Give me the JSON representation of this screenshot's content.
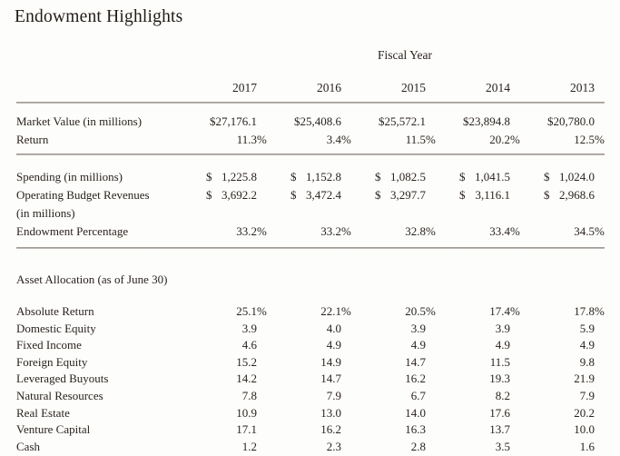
{
  "page": {
    "title": "Endowment Highlights"
  },
  "colors": {
    "text": "#2a231d",
    "rule": "#a8a29c",
    "background": "#fdfdfc"
  },
  "table": {
    "group_header": "Fiscal Year",
    "years": [
      "2017",
      "2016",
      "2015",
      "2014",
      "2013"
    ],
    "sections": [
      {
        "name": "market-value",
        "rows": [
          {
            "label": "Market Value (in millions)",
            "type": "plain",
            "values": [
              "$27,176.1",
              "$25,408.6",
              "$25,572.1",
              "$23,894.8",
              "$20,780.0"
            ]
          },
          {
            "label": "Return",
            "type": "percent",
            "values": [
              "11.3%",
              "3.4%",
              "11.5%",
              "20.2%",
              "12.5%"
            ]
          }
        ]
      },
      {
        "name": "spending",
        "rows": [
          {
            "label": "Spending (in millions)",
            "type": "money",
            "values": [
              "$ 1,225.8",
              "$ 1,152.8",
              "$ 1,082.5",
              "$ 1,041.5",
              "$ 1,024.0"
            ]
          },
          {
            "label": "Operating Budget Revenues\n(in millions)",
            "type": "money",
            "values": [
              "$ 3,692.2",
              "$ 3,472.4",
              "$ 3,297.7",
              "$ 3,116.1",
              "$ 2,968.6"
            ]
          },
          {
            "label": "Endowment Percentage",
            "type": "percent",
            "values": [
              "33.2%",
              "33.2%",
              "32.8%",
              "33.4%",
              "34.5%"
            ]
          }
        ]
      }
    ],
    "asset_allocation": {
      "header": "Asset Allocation (as of June 30)",
      "rows": [
        {
          "label": "Absolute Return",
          "type": "percent",
          "values": [
            "25.1%",
            "22.1%",
            "20.5%",
            "17.4%",
            "17.8%"
          ]
        },
        {
          "label": "Domestic Equity",
          "type": "plain",
          "values": [
            "3.9",
            "4.0",
            "3.9",
            "3.9",
            "5.9"
          ]
        },
        {
          "label": "Fixed Income",
          "type": "plain",
          "values": [
            "4.6",
            "4.9",
            "4.9",
            "4.9",
            "4.9"
          ]
        },
        {
          "label": "Foreign Equity",
          "type": "plain",
          "values": [
            "15.2",
            "14.9",
            "14.7",
            "11.5",
            "9.8"
          ]
        },
        {
          "label": "Leveraged Buyouts",
          "type": "plain",
          "values": [
            "14.2",
            "14.7",
            "16.2",
            "19.3",
            "21.9"
          ]
        },
        {
          "label": "Natural Resources",
          "type": "plain",
          "values": [
            "7.8",
            "7.9",
            "6.7",
            "8.2",
            "7.9"
          ]
        },
        {
          "label": "Real Estate",
          "type": "plain",
          "values": [
            "10.9",
            "13.0",
            "14.0",
            "17.6",
            "20.2"
          ]
        },
        {
          "label": "Venture Capital",
          "type": "plain",
          "values": [
            "17.1",
            "16.2",
            "16.3",
            "13.7",
            "10.0"
          ]
        },
        {
          "label": "Cash",
          "type": "plain",
          "values": [
            "1.2",
            "2.3",
            "2.8",
            "3.5",
            "1.6"
          ]
        }
      ]
    }
  }
}
